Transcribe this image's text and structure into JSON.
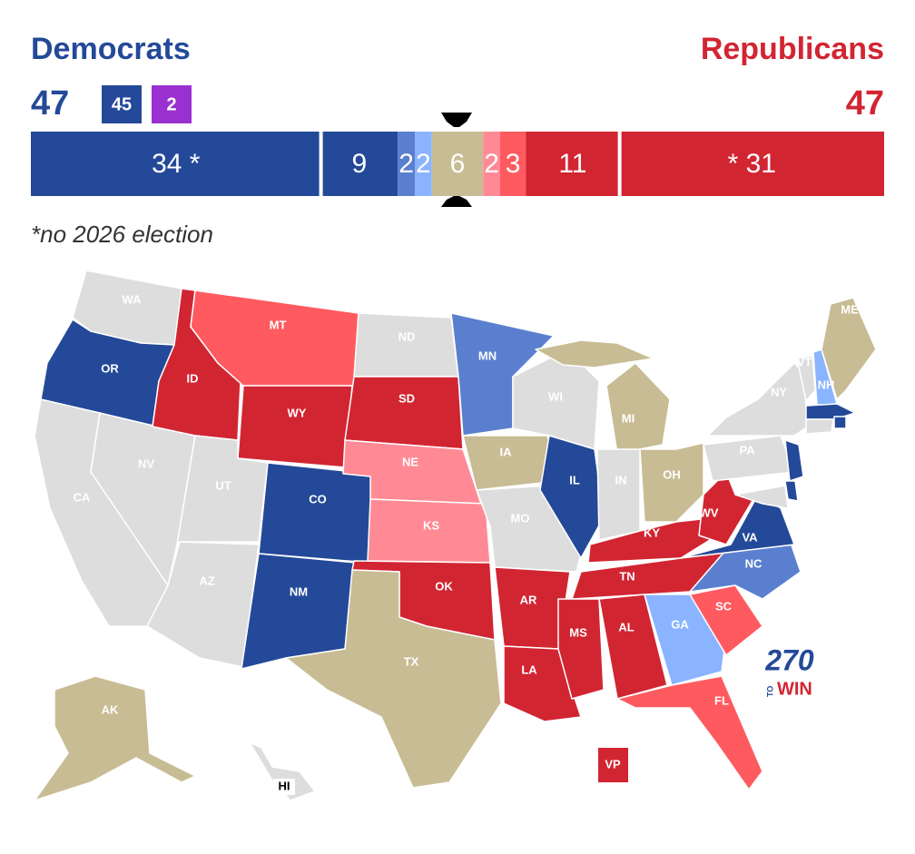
{
  "header": {
    "dem": {
      "name": "Democrats",
      "total": 47,
      "color": "#244999",
      "boxes": [
        {
          "value": 45,
          "color": "#244999"
        },
        {
          "value": 2,
          "color": "#9b30d0"
        }
      ]
    },
    "rep": {
      "name": "Republicans",
      "total": 47,
      "color": "#d22532"
    }
  },
  "seat_bar": {
    "segments": [
      {
        "value": 34,
        "label": "34 *",
        "color": "#244999"
      },
      {
        "value": 9,
        "color": "#244999"
      },
      {
        "value": 2,
        "color": "#5a7fcf"
      },
      {
        "value": 2,
        "color": "#8ab4ff"
      },
      {
        "value": 6,
        "color": "#c8bc94"
      },
      {
        "value": 2,
        "color": "#ff8a96"
      },
      {
        "value": 3,
        "color": "#ff5a5f"
      },
      {
        "value": 11,
        "color": "#d22532"
      },
      {
        "value": 31,
        "label": "* 31",
        "color": "#d22532"
      }
    ]
  },
  "footnote": "*no 2026 election",
  "map": {
    "states": [
      {
        "label": "WA",
        "color": "#dddddd"
      },
      {
        "label": "OR",
        "color": "#244999"
      },
      {
        "label": "CA",
        "color": "#dddddd"
      },
      {
        "label": "NV",
        "color": "#dddddd"
      },
      {
        "label": "ID",
        "color": "#d22532"
      },
      {
        "label": "MT",
        "color": "#ff5a5f"
      },
      {
        "label": "WY",
        "color": "#d22532"
      },
      {
        "label": "UT",
        "color": "#dddddd"
      },
      {
        "label": "AZ",
        "color": "#dddddd"
      },
      {
        "label": "CO",
        "color": "#244999"
      },
      {
        "label": "NM",
        "color": "#244999"
      },
      {
        "label": "ND",
        "color": "#dddddd"
      },
      {
        "label": "SD",
        "color": "#d22532"
      },
      {
        "label": "NE",
        "color": "#ff8a96"
      },
      {
        "label": "KS",
        "color": "#ff8a96"
      },
      {
        "label": "OK",
        "color": "#d22532"
      },
      {
        "label": "TX",
        "color": "#c8bc94"
      },
      {
        "label": "MN",
        "color": "#5a7fcf"
      },
      {
        "label": "IA",
        "color": "#c8bc94"
      },
      {
        "label": "MO",
        "color": "#dddddd"
      },
      {
        "label": "AR",
        "color": "#d22532"
      },
      {
        "label": "LA",
        "color": "#d22532"
      },
      {
        "label": "WI",
        "color": "#dddddd"
      },
      {
        "label": "IL",
        "color": "#244999"
      },
      {
        "label": "MI",
        "color": "#c8bc94"
      },
      {
        "label": "IN",
        "color": "#dddddd"
      },
      {
        "label": "OH",
        "color": "#c8bc94"
      },
      {
        "label": "KY",
        "color": "#d22532"
      },
      {
        "label": "TN",
        "color": "#d22532"
      },
      {
        "label": "MS",
        "color": "#d22532"
      },
      {
        "label": "AL",
        "color": "#d22532"
      },
      {
        "label": "GA",
        "color": "#8ab4ff"
      },
      {
        "label": "FL",
        "color": "#ff5a5f"
      },
      {
        "label": "SC",
        "color": "#ff5a5f"
      },
      {
        "label": "NC",
        "color": "#5a7fcf"
      },
      {
        "label": "VA",
        "color": "#244999"
      },
      {
        "label": "WV",
        "color": "#d22532"
      },
      {
        "label": "PA",
        "color": "#dddddd"
      },
      {
        "label": "NY",
        "color": "#dddddd"
      },
      {
        "label": "VT",
        "color": "#dddddd"
      },
      {
        "label": "NH",
        "color": "#8ab4ff"
      },
      {
        "label": "ME",
        "color": "#c8bc94"
      },
      {
        "label": "AK",
        "color": "#c8bc94"
      },
      {
        "label": "HI",
        "color": "#dddddd"
      },
      {
        "color": "#244999"
      },
      {
        "color": "#dddddd"
      },
      {
        "color": "#244999"
      },
      {
        "color": "#244999"
      },
      {
        "color": "#244999"
      },
      {
        "color": "#dddddd"
      }
    ],
    "vp": {
      "label": "VP",
      "color": "#d22532"
    },
    "logo": {
      "number": "270",
      "small": "TO",
      "word": "WIN",
      "number_color": "#244999",
      "word_color": "#d22532"
    }
  }
}
